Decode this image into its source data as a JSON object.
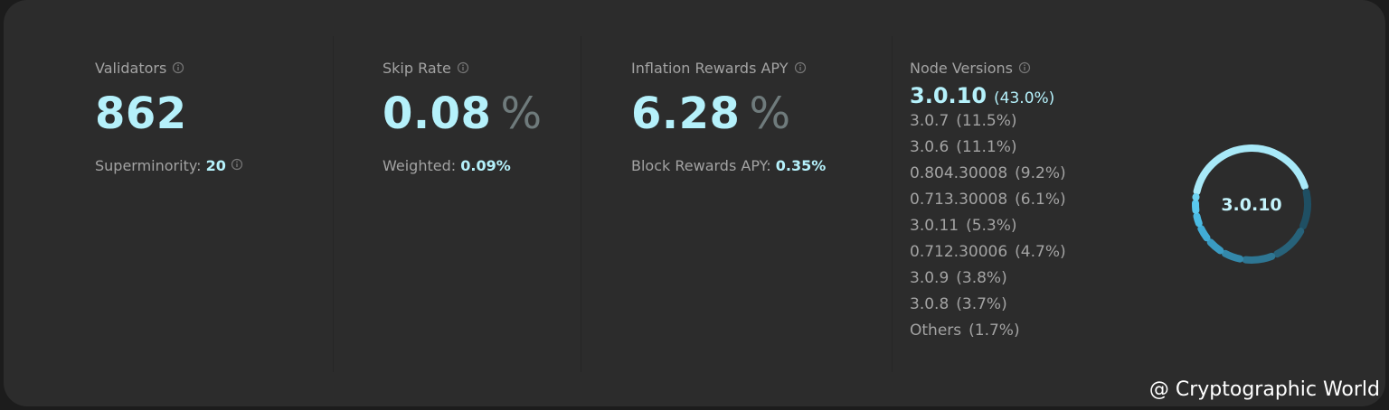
{
  "stats": [
    {
      "label": "Validators",
      "value": "862",
      "sub_label": "Superminority:",
      "sub_value": "20"
    },
    {
      "label": "Skip Rate",
      "value": "0.08",
      "unit": "%",
      "sub_label": "Weighted:",
      "sub_value": "0.09%"
    },
    {
      "label": "Inflation Rewards APY",
      "value": "6.28",
      "unit": "%",
      "sub_label": "Block Rewards APY:",
      "sub_value": "0.35%"
    }
  ],
  "node_versions": {
    "title": "Node Versions",
    "center_label": "3.0.10",
    "items": [
      {
        "version": "3.0.10",
        "share": 43.0,
        "label": "(43.0%)"
      },
      {
        "version": "3.0.7",
        "share": 11.5,
        "label": "(11.5%)"
      },
      {
        "version": "3.0.6",
        "share": 11.1,
        "label": "(11.1%)"
      },
      {
        "version": "0.804.30008",
        "share": 9.2,
        "label": "(9.2%)"
      },
      {
        "version": "0.713.30008",
        "share": 6.1,
        "label": "(6.1%)"
      },
      {
        "version": "3.0.11",
        "share": 5.3,
        "label": "(5.3%)"
      },
      {
        "version": "0.712.30006",
        "share": 4.7,
        "label": "(4.7%)"
      },
      {
        "version": "3.0.9",
        "share": 3.8,
        "label": "(3.8%)"
      },
      {
        "version": "3.0.8",
        "share": 3.7,
        "label": "(3.7%)"
      },
      {
        "version": "Others",
        "share": 1.7,
        "label": "(1.7%)"
      }
    ]
  },
  "watermark": "@ Cryptographic World"
}
